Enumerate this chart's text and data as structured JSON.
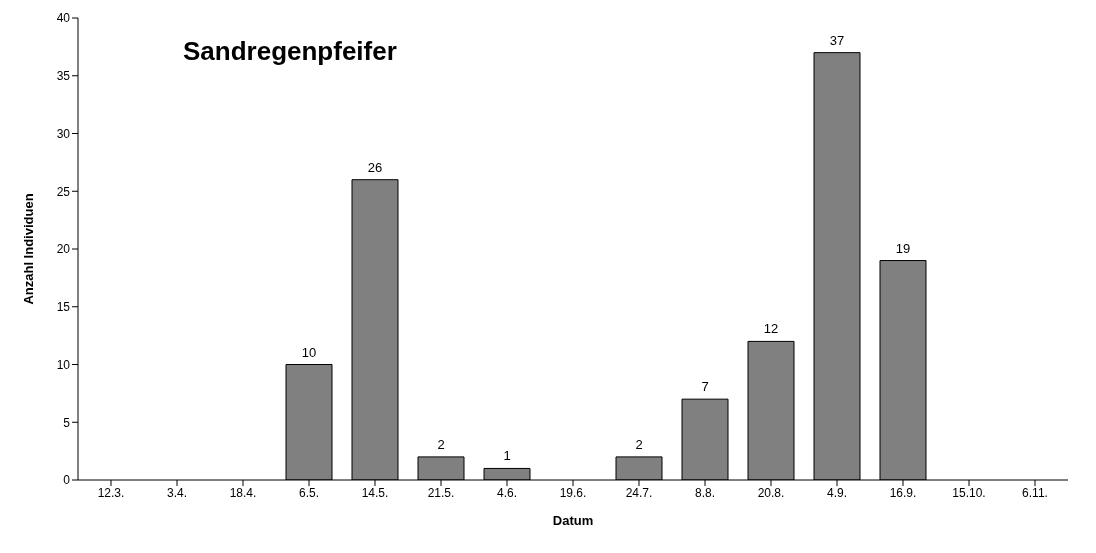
{
  "chart_data": {
    "type": "bar",
    "title": "Sandregenpfeifer",
    "xlabel": "Datum",
    "ylabel": "Anzahl Individuen",
    "categories": [
      "12.3.",
      "3.4.",
      "18.4.",
      "6.5.",
      "14.5.",
      "21.5.",
      "4.6.",
      "19.6.",
      "24.7.",
      "8.8.",
      "20.8.",
      "4.9.",
      "16.9.",
      "15.10.",
      "6.11."
    ],
    "values": [
      null,
      null,
      null,
      10,
      26,
      2,
      1,
      null,
      2,
      7,
      12,
      37,
      19,
      null,
      null
    ],
    "color": "#808080",
    "ylim": [
      0,
      40
    ],
    "yticks": [
      0,
      5,
      10,
      15,
      20,
      25,
      30,
      35,
      40
    ],
    "grid": false,
    "legend": false,
    "data_labels": true
  }
}
